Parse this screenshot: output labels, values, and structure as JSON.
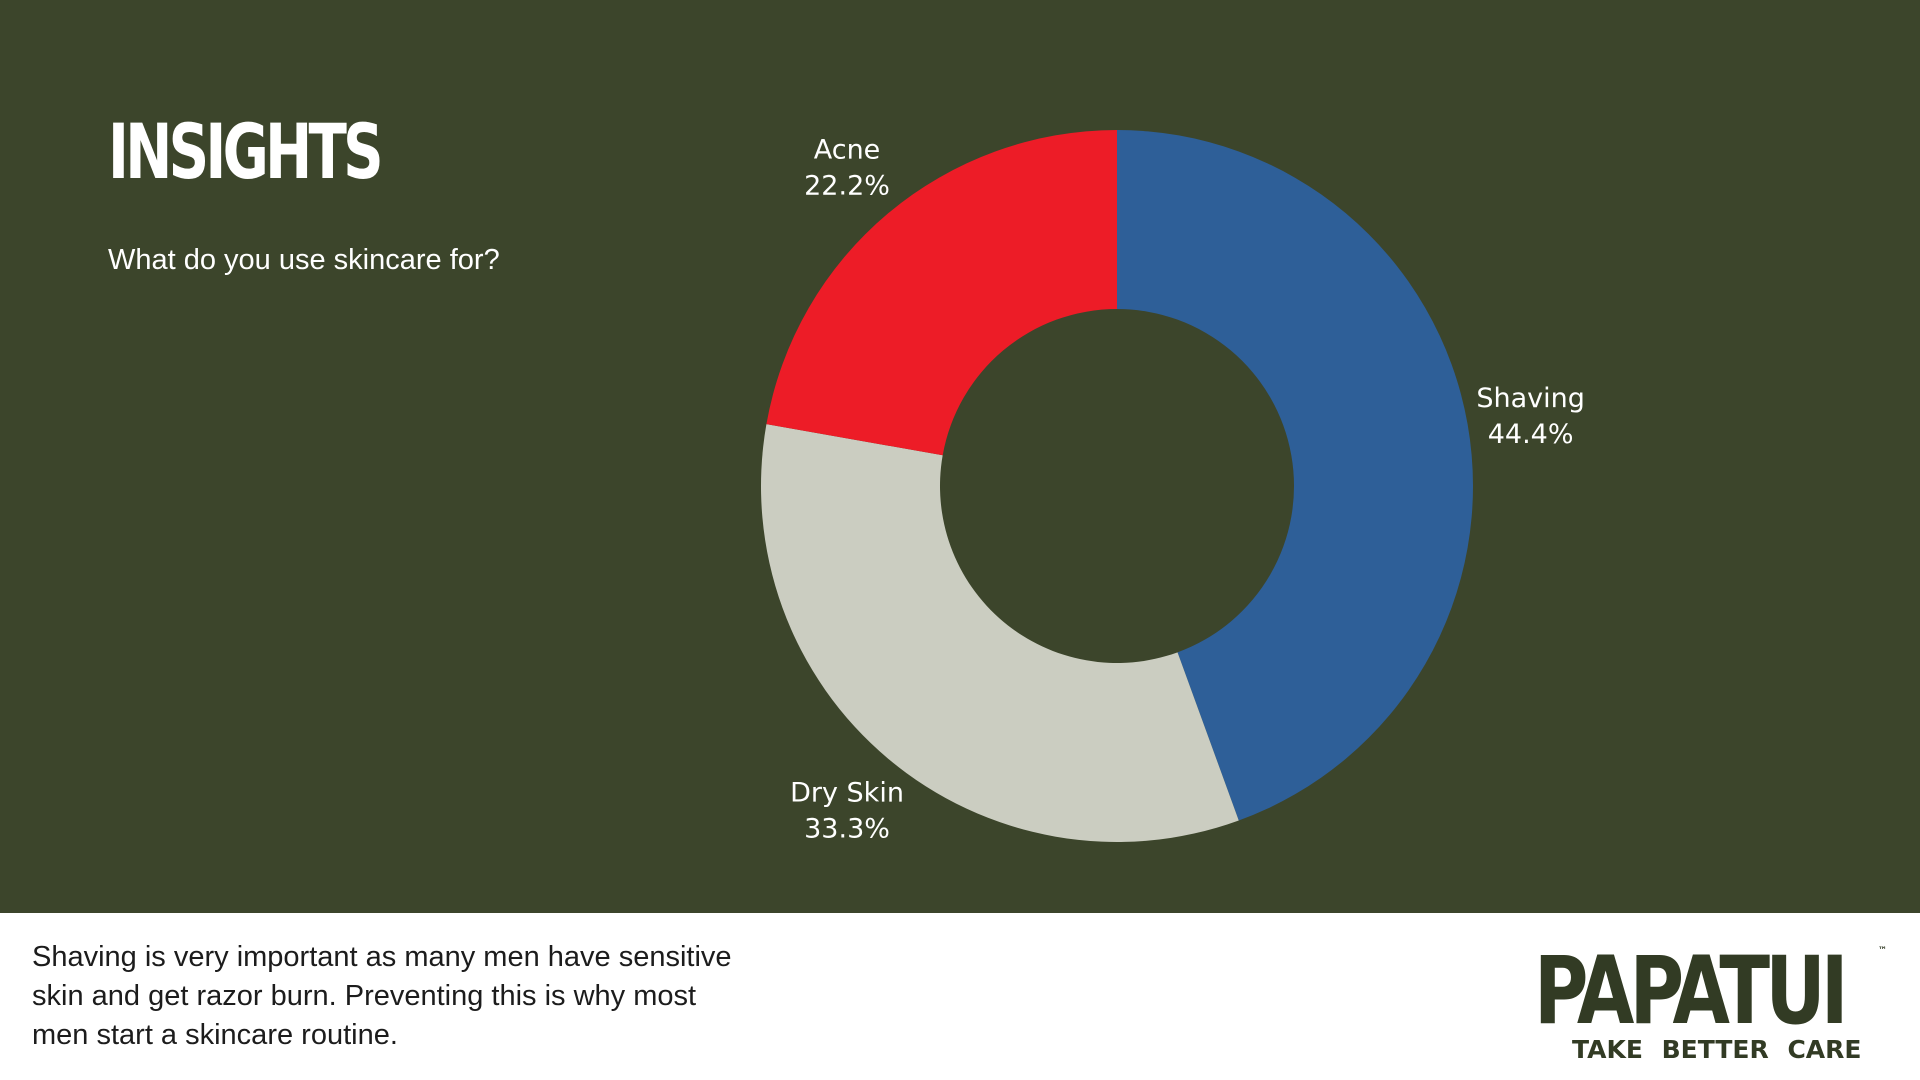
{
  "header": {
    "title": "INSIGHTS",
    "question": "What do you use skincare for?"
  },
  "chart_data": {
    "type": "pie",
    "variant": "donut",
    "categories": [
      "Shaving",
      "Dry Skin",
      "Acne"
    ],
    "values": [
      44.4,
      33.3,
      22.2
    ],
    "value_labels": [
      "44.4%",
      "33.3%",
      "22.2%"
    ],
    "colors": [
      "#2e5f98",
      "#cbcdc1",
      "#ed1c27"
    ],
    "title": "",
    "legend": "none"
  },
  "footer": {
    "note": "Shaving is very important as many men have sensitive skin and get razor burn. Preventing this is why most men start a skincare routine."
  },
  "brand": {
    "name": "PAPATUI",
    "trademark": "™",
    "tagline": "TAKE BETTER CARE"
  },
  "colors": {
    "background": "#3c452b",
    "footer_background": "#ffffff",
    "brand": "#323b24"
  }
}
